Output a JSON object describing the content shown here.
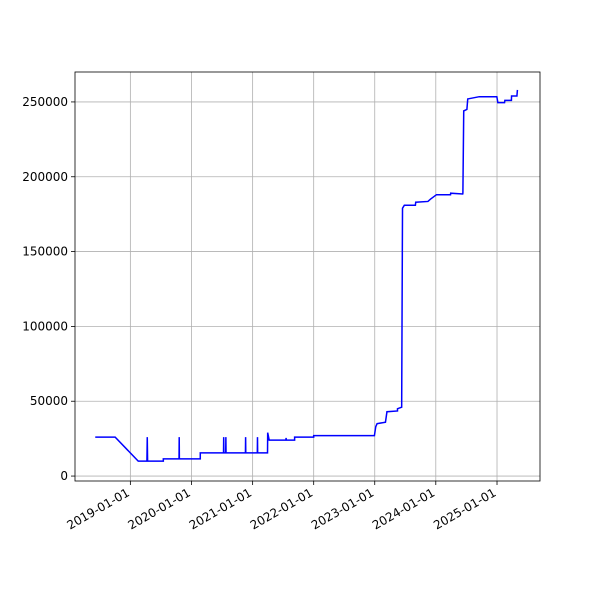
{
  "chart_data": {
    "type": "line",
    "color": "#0000ff",
    "grid": true,
    "x": [
      "2018-06-05",
      "2018-10-02",
      "2019-02-17",
      "2019-04-10",
      "2019-04-12",
      "2019-04-14",
      "2019-07-17",
      "2019-07-17",
      "2019-10-19",
      "2019-10-20",
      "2019-10-21",
      "2020-02-23",
      "2020-02-23",
      "2020-07-11",
      "2020-07-12",
      "2020-07-13",
      "2020-07-24",
      "2020-07-25",
      "2020-07-26",
      "2020-11-19",
      "2020-11-20",
      "2020-11-21",
      "2021-01-29",
      "2021-01-30",
      "2021-01-31",
      "2021-03-31",
      "2021-04-01",
      "2021-04-10",
      "2021-07-19",
      "2021-07-20",
      "2021-07-21",
      "2021-09-09",
      "2021-09-09",
      "2022-01-01",
      "2022-01-01",
      "2022-12-30",
      "2023-01-07",
      "2023-01-15",
      "2023-03-06",
      "2023-03-15",
      "2023-05-17",
      "2023-05-17",
      "2023-06-11",
      "2023-06-16",
      "2023-06-27",
      "2023-09-01",
      "2023-09-03",
      "2023-11-15",
      "2023-11-30",
      "2024-01-05",
      "2024-03-29",
      "2024-03-30",
      "2024-06-10",
      "2024-06-11",
      "2024-06-16",
      "2024-07-05",
      "2024-07-10",
      "2024-09-17",
      "2024-12-31",
      "2025-01-06",
      "2025-02-15",
      "2025-02-17",
      "2025-03-28",
      "2025-03-29",
      "2025-04-30",
      "2025-05-03"
    ],
    "values": [
      26000,
      26000,
      10000,
      10000,
      26000,
      10000,
      10000,
      11500,
      11500,
      26000,
      11500,
      11500,
      15500,
      15500,
      26000,
      15500,
      15500,
      26000,
      15500,
      15500,
      26000,
      15500,
      15500,
      26000,
      15500,
      15500,
      29000,
      24000,
      24000,
      25500,
      24000,
      24000,
      26000,
      26000,
      27000,
      27000,
      33000,
      35000,
      36000,
      43000,
      43500,
      45000,
      46000,
      179000,
      181000,
      181000,
      183000,
      183500,
      185000,
      188000,
      188000,
      189000,
      188500,
      189000,
      244000,
      245000,
      252000,
      253500,
      253500,
      249500,
      249500,
      251000,
      251000,
      254000,
      254000,
      258000
    ],
    "xlim": [
      "2018-02-04",
      "2025-09-15"
    ],
    "xticks": [
      "2019-01-01",
      "2020-01-01",
      "2021-01-01",
      "2022-01-01",
      "2023-01-01",
      "2024-01-01",
      "2025-01-01"
    ],
    "ylim": [
      -3300,
      270000
    ],
    "yticks": [
      0,
      50000,
      100000,
      150000,
      200000,
      250000
    ]
  }
}
